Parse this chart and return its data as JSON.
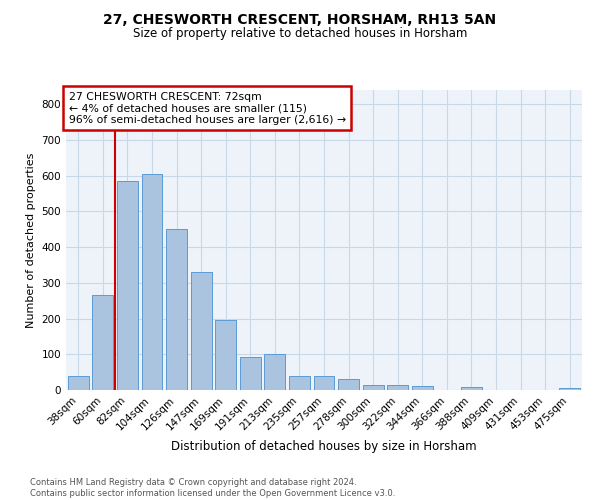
{
  "title": "27, CHESWORTH CRESCENT, HORSHAM, RH13 5AN",
  "subtitle": "Size of property relative to detached houses in Horsham",
  "xlabel": "Distribution of detached houses by size in Horsham",
  "ylabel": "Number of detached properties",
  "footer_line1": "Contains HM Land Registry data © Crown copyright and database right 2024.",
  "footer_line2": "Contains public sector information licensed under the Open Government Licence v3.0.",
  "categories": [
    "38sqm",
    "60sqm",
    "82sqm",
    "104sqm",
    "126sqm",
    "147sqm",
    "169sqm",
    "191sqm",
    "213sqm",
    "235sqm",
    "257sqm",
    "278sqm",
    "300sqm",
    "322sqm",
    "344sqm",
    "366sqm",
    "388sqm",
    "409sqm",
    "431sqm",
    "453sqm",
    "475sqm"
  ],
  "values": [
    38,
    265,
    585,
    605,
    450,
    330,
    197,
    92,
    102,
    40,
    38,
    30,
    13,
    15,
    11,
    0,
    8,
    0,
    0,
    0,
    7
  ],
  "bar_color": "#aac4e0",
  "bar_edge_color": "#5b9bd5",
  "annotation_text": "27 CHESWORTH CRESCENT: 72sqm\n← 4% of detached houses are smaller (115)\n96% of semi-detached houses are larger (2,616) →",
  "annotation_box_color": "#cc0000",
  "property_line_color": "#cc0000",
  "property_line_x": 1.5,
  "ylim": [
    0,
    840
  ],
  "yticks": [
    0,
    100,
    200,
    300,
    400,
    500,
    600,
    700,
    800
  ],
  "grid_color": "#c8d8e8",
  "background_color": "#eef3fa",
  "title_fontsize": 10,
  "subtitle_fontsize": 8.5,
  "xlabel_fontsize": 8.5,
  "ylabel_fontsize": 8,
  "tick_fontsize": 7.5,
  "annotation_fontsize": 7.8,
  "footer_fontsize": 6.0
}
